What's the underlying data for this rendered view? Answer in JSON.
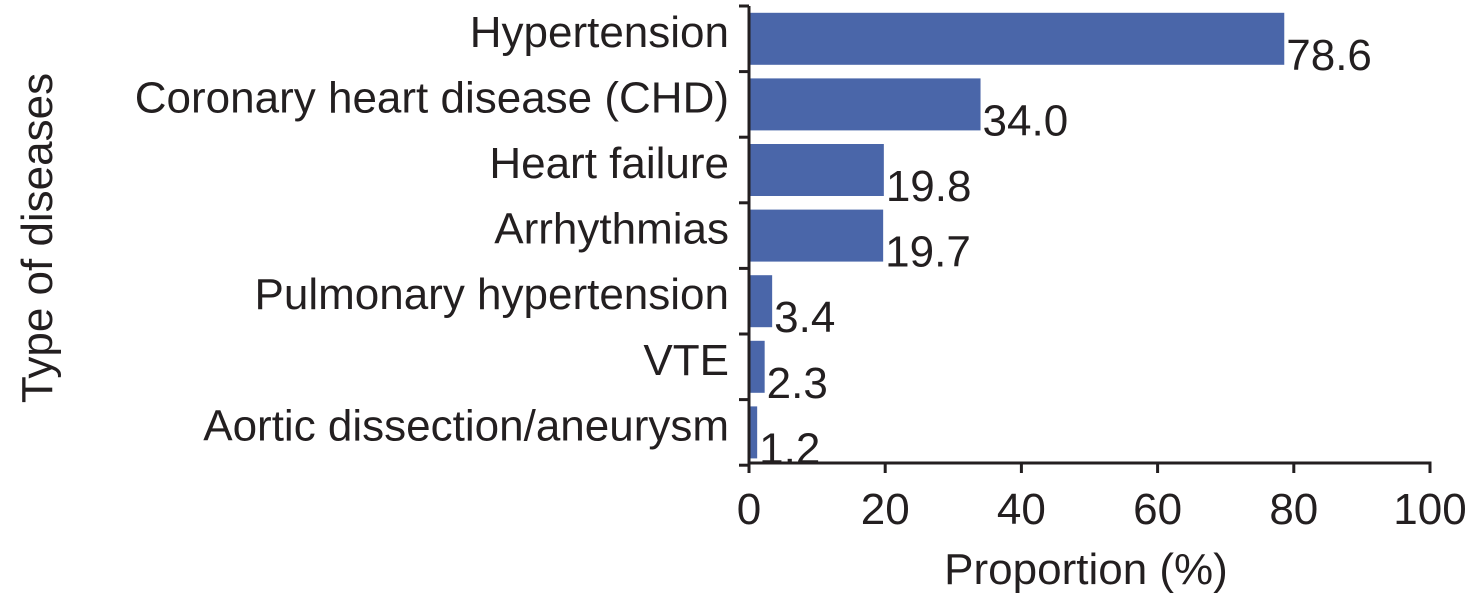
{
  "chart_data": {
    "type": "bar",
    "orientation": "horizontal",
    "categories": [
      "Hypertension",
      "Coronary heart disease (CHD)",
      "Heart failure",
      "Arrhythmias",
      "Pulmonary hypertension",
      "VTE",
      "Aortic dissection/aneurysm"
    ],
    "values": [
      78.6,
      34.0,
      19.8,
      19.7,
      3.4,
      2.3,
      1.2
    ],
    "value_labels": [
      "78.6",
      "34.0",
      "19.8",
      "19.7",
      "3.4",
      "2.3",
      "1.2"
    ],
    "xlabel": "Proportion (%)",
    "ylabel": "Type of diseases",
    "xlim": [
      0,
      100
    ],
    "xticks": [
      "0",
      "20",
      "40",
      "60",
      "80",
      "100"
    ],
    "grid": false,
    "legend": "none",
    "colors": {
      "bar": "#4a66a9",
      "axis": "#231f20",
      "text": "#231f20"
    }
  }
}
